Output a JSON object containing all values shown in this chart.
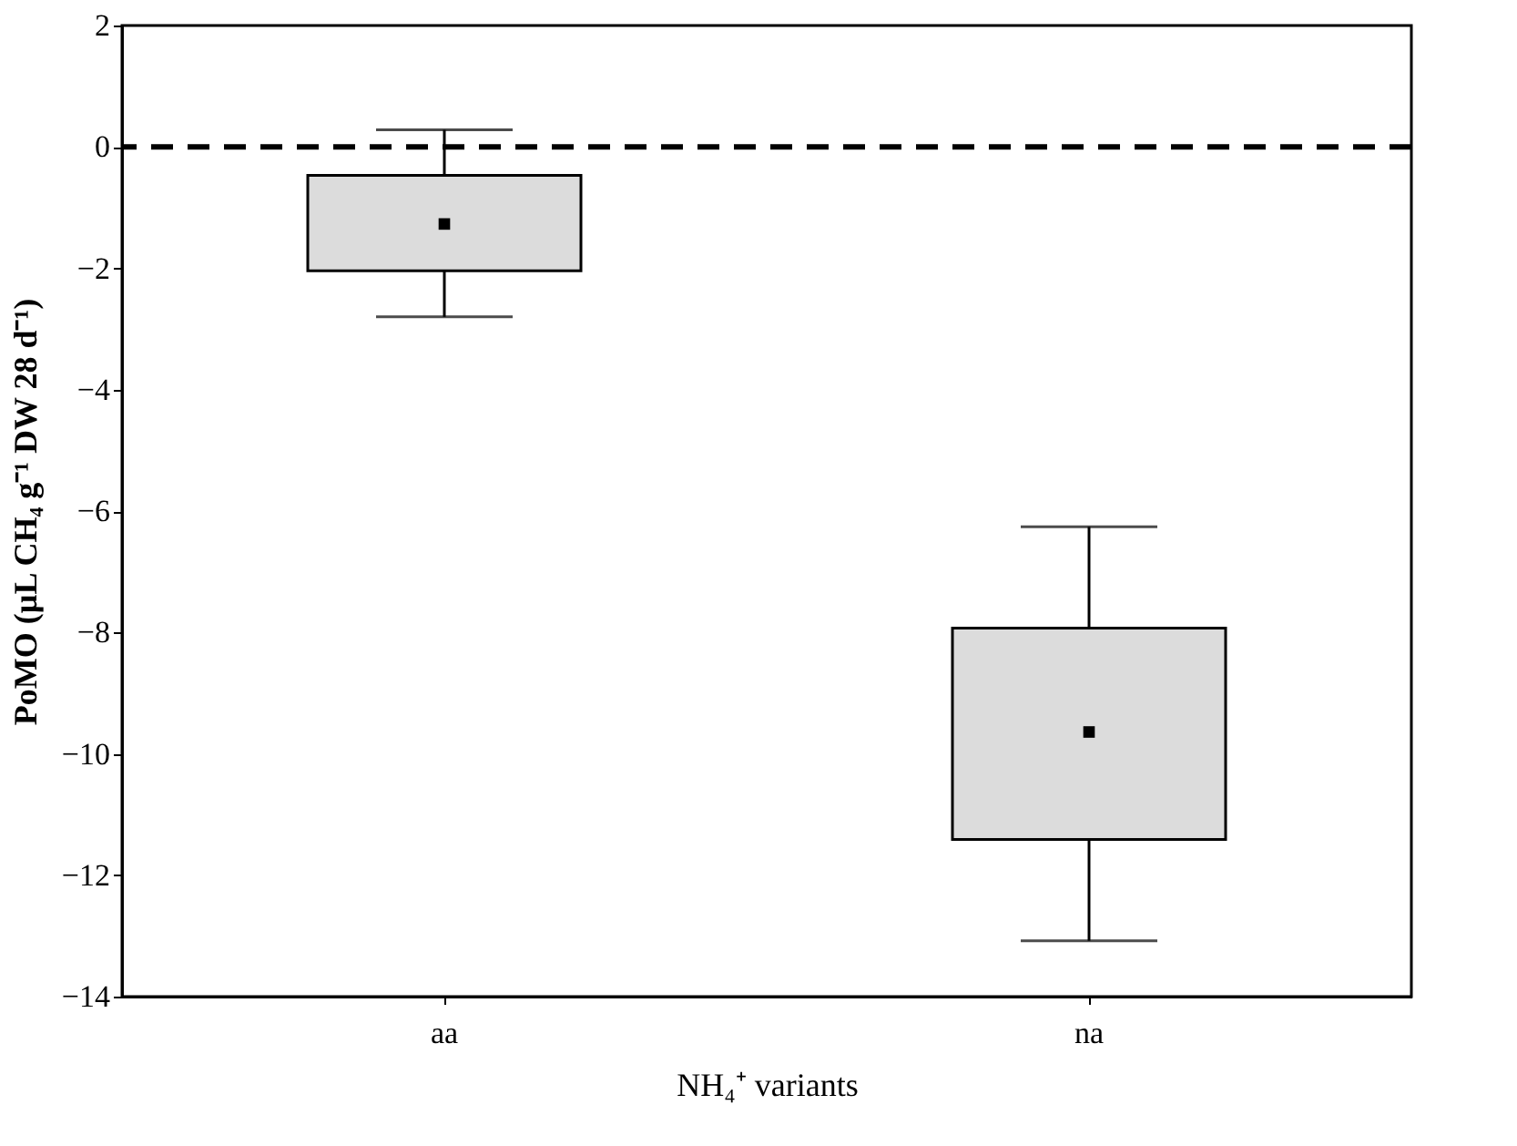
{
  "chart_data": {
    "type": "box",
    "categories": [
      "aa",
      "na"
    ],
    "series": [
      {
        "color": "#dcdcdc",
        "boxes": [
          {
            "low": -2.8,
            "q1": -2.04,
            "median": -1.27,
            "q3": -0.47,
            "high": 0.28
          },
          {
            "low": -13.08,
            "q1": -11.41,
            "median": -9.64,
            "q3": -7.93,
            "high": -6.26
          }
        ]
      }
    ],
    "ylim": [
      -14,
      2
    ],
    "yticks": [
      -14,
      -12,
      -10,
      -8,
      -6,
      -4,
      -2,
      0,
      2
    ],
    "ref_lines": [
      {
        "axis": "y",
        "value": 0,
        "color": "#000000",
        "line_style": "dashed"
      }
    ],
    "xlabel": "NH₄⁺ variants",
    "ylabel": "PoMO (µL CH₄ g⁻¹ DW 28 d⁻¹)",
    "grid": false,
    "marker": "square"
  }
}
